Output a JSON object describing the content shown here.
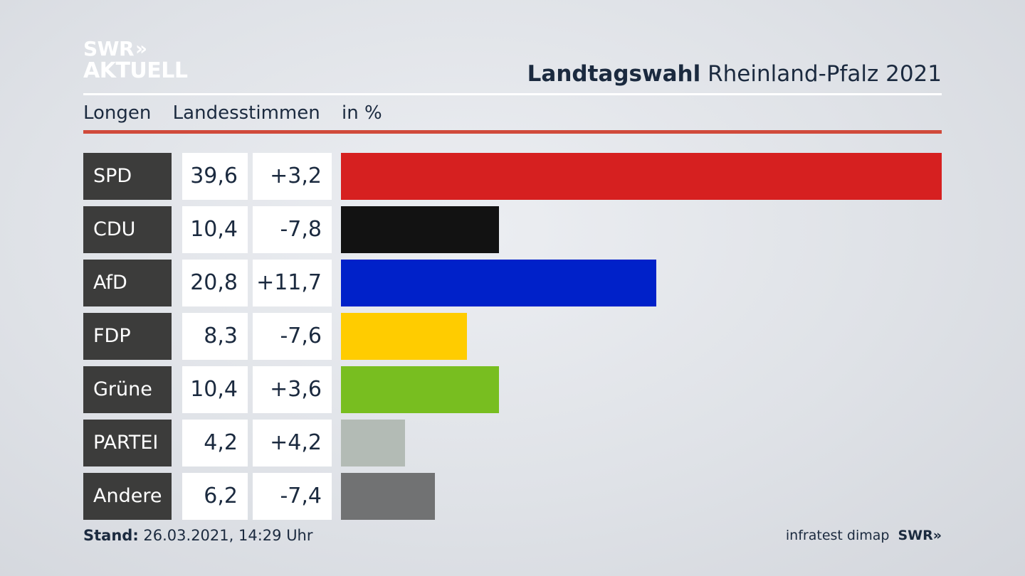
{
  "brand": {
    "line1": "SWR",
    "line2": "AKTUELL",
    "chevrons": "»"
  },
  "header": {
    "title_bold": "Landtagswahl",
    "title_rest": "Rheinland-Pfalz 2021"
  },
  "subtitle": {
    "location": "Longen",
    "vote_type": "Landesstimmen",
    "unit": "in %"
  },
  "footer": {
    "stand_label": "Stand:",
    "stand_value": "26.03.2021, 14:29 Uhr",
    "source": "infratest dimap",
    "swr": "SWR»"
  },
  "chart_data": {
    "type": "bar",
    "orientation": "horizontal",
    "title": "Landtagswahl Rheinland-Pfalz 2021",
    "subtitle": "Longen Landesstimmen in %",
    "categories": [
      "SPD",
      "CDU",
      "AfD",
      "FDP",
      "Grüne",
      "PARTEI",
      "Andere"
    ],
    "values": [
      39.6,
      10.4,
      20.8,
      8.3,
      10.4,
      4.2,
      6.2
    ],
    "value_labels": [
      "39,6",
      "10,4",
      "20,8",
      "8,3",
      "10,4",
      "4,2",
      "6,2"
    ],
    "change_labels": [
      "+3,2",
      "-7,8",
      "+11,7",
      "-7,6",
      "+3,6",
      "+4,2",
      "-7,4"
    ],
    "colors": [
      "#d62020",
      "#121212",
      "#0021c9",
      "#ffcc00",
      "#78be20",
      "#b3bbb5",
      "#717273"
    ],
    "xlim": [
      0,
      39.6
    ]
  }
}
